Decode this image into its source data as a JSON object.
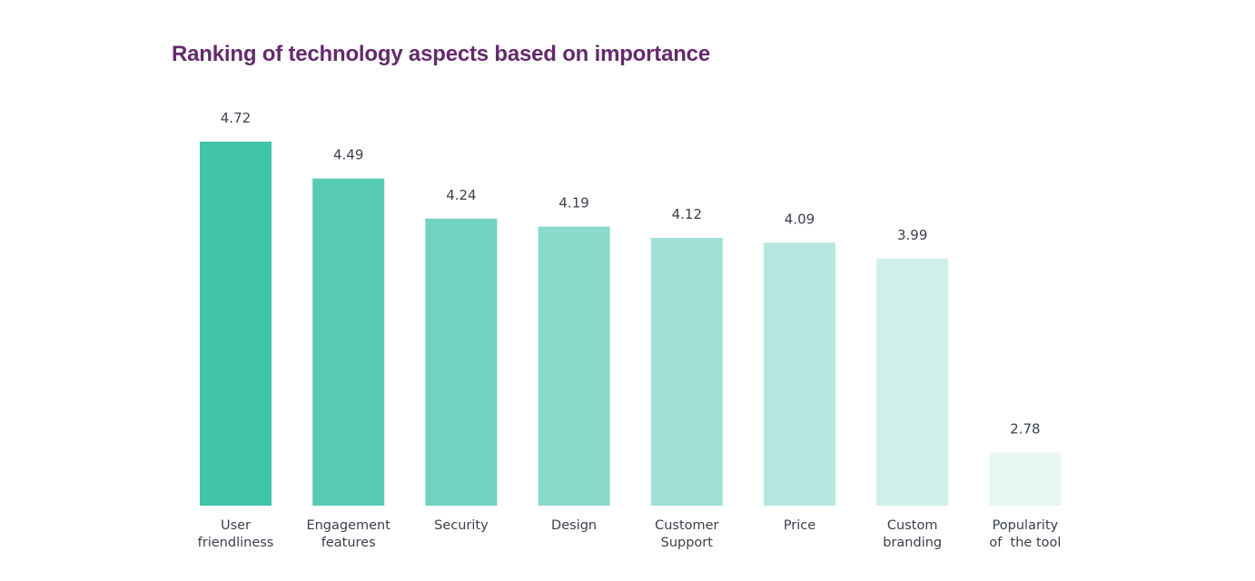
{
  "chart_data": {
    "type": "bar",
    "title": "Ranking of technology aspects based on importance",
    "xlabel": "",
    "ylabel": "",
    "grid": false,
    "legend": "none",
    "categories": [
      [
        "User",
        "friendliness"
      ],
      [
        "Engagement",
        "features"
      ],
      [
        "Security"
      ],
      [
        "Design"
      ],
      [
        "Customer",
        "Support"
      ],
      [
        "Price"
      ],
      [
        "Custom",
        "branding"
      ],
      [
        "Popularity",
        "of  the tool"
      ]
    ],
    "values": [
      4.72,
      4.49,
      4.24,
      4.19,
      4.12,
      4.09,
      3.99,
      2.78
    ],
    "value_labels": [
      "4.72",
      "4.49",
      "4.24",
      "4.19",
      "4.12",
      "4.09",
      "3.99",
      "2.78"
    ],
    "colors": [
      "#40c4aa",
      "#58cbb5",
      "#70d2bf",
      "#89dacb",
      "#a1e1d5",
      "#b6e8e0",
      "#d0efea",
      "#e6f6f3"
    ],
    "ylim": [
      2.45,
      4.72
    ]
  }
}
